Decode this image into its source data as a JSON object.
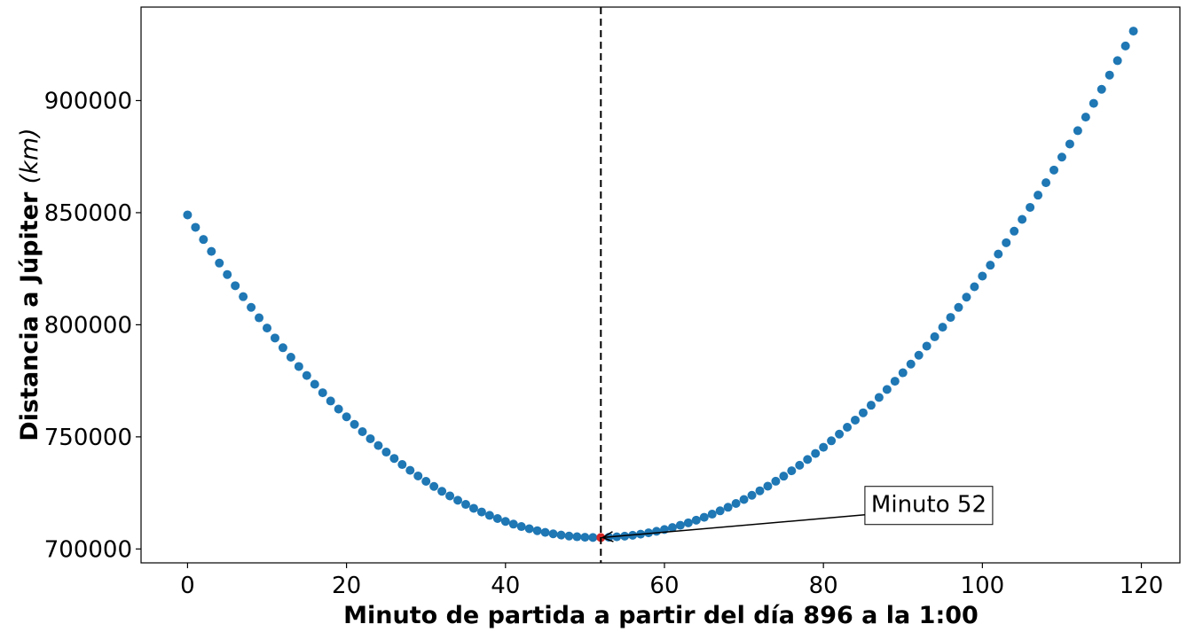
{
  "chart_data": {
    "type": "scatter",
    "xlabel": "Minuto de partida a partir del día 896 a la 1:00",
    "ylabel_main": "Distancia a Júpiter ",
    "ylabel_unit": "(km)",
    "xlim": [
      -5.85,
      124.85
    ],
    "ylim": [
      693800,
      941700
    ],
    "xticks": [
      0,
      20,
      40,
      60,
      80,
      100,
      120
    ],
    "yticks": [
      700000,
      750000,
      800000,
      850000,
      900000
    ],
    "grid": false,
    "series_color": "#1f77b4",
    "highlight_color": "#d62728",
    "curve": {
      "x_start": 0,
      "x_end": 119,
      "step": 1,
      "min_x": 51.5,
      "min_y": 705100,
      "y_at_0": 849000,
      "y_at_119": 931000
    },
    "highlight_point": {
      "x": 52,
      "y": 705100
    },
    "vline": {
      "x": 52,
      "style": "dashed",
      "color": "#000000"
    },
    "annotation": {
      "text": "Minuto 52",
      "x": 52,
      "y": 705100,
      "text_x": 86,
      "text_y": 720000
    }
  }
}
